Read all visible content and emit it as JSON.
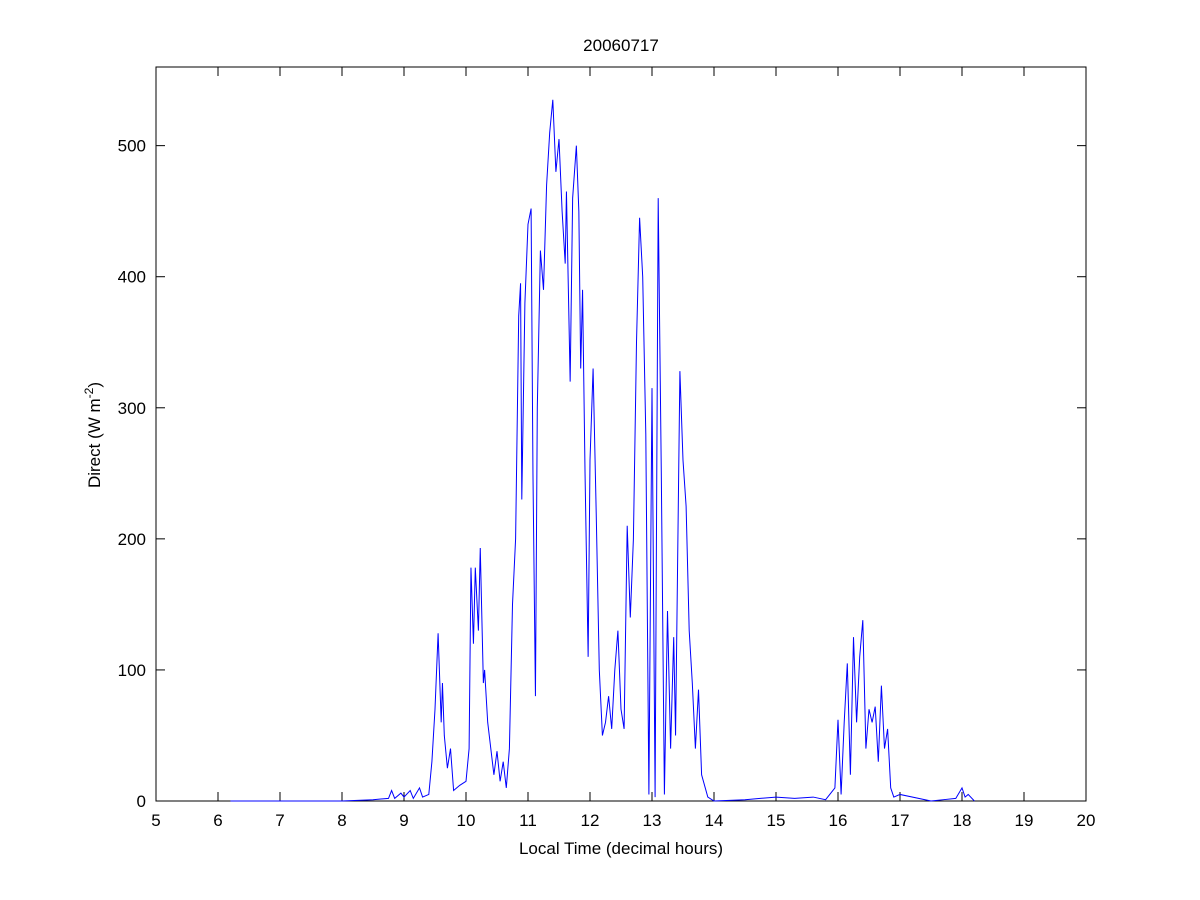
{
  "chart_data": {
    "type": "line",
    "title": "20060717",
    "x_label": "Local Time (decimal hours)",
    "y_label": {
      "text": "Direct (W m",
      "superscript": "-2",
      "suffix": ")"
    },
    "xlim": [
      5,
      20
    ],
    "ylim": [
      0,
      560
    ],
    "xticks": [
      5,
      6,
      7,
      8,
      9,
      10,
      11,
      12,
      13,
      14,
      15,
      16,
      17,
      18,
      19,
      20
    ],
    "yticks": [
      0,
      100,
      200,
      300,
      400,
      500
    ],
    "grid": false,
    "series": [
      {
        "color": "#0000ff",
        "x": [
          6.2,
          7,
          8,
          8.5,
          8.75,
          8.8,
          8.85,
          8.95,
          9.0,
          9.1,
          9.15,
          9.25,
          9.3,
          9.4,
          9.45,
          9.5,
          9.55,
          9.6,
          9.62,
          9.65,
          9.7,
          9.75,
          9.8,
          9.9,
          10.0,
          10.05,
          10.08,
          10.12,
          10.15,
          10.2,
          10.23,
          10.28,
          10.3,
          10.35,
          10.45,
          10.5,
          10.55,
          10.6,
          10.65,
          10.7,
          10.75,
          10.8,
          10.85,
          10.88,
          10.9,
          10.95,
          11.0,
          11.05,
          11.08,
          11.12,
          11.15,
          11.2,
          11.25,
          11.3,
          11.35,
          11.4,
          11.45,
          11.5,
          11.55,
          11.6,
          11.62,
          11.68,
          11.72,
          11.78,
          11.82,
          11.85,
          11.88,
          11.92,
          11.97,
          12.0,
          12.05,
          12.1,
          12.15,
          12.2,
          12.25,
          12.3,
          12.35,
          12.4,
          12.45,
          12.5,
          12.55,
          12.6,
          12.65,
          12.7,
          12.75,
          12.8,
          12.85,
          12.9,
          12.95,
          13.0,
          13.05,
          13.1,
          13.15,
          13.2,
          13.25,
          13.3,
          13.35,
          13.38,
          13.45,
          13.5,
          13.55,
          13.6,
          13.65,
          13.7,
          13.75,
          13.8,
          13.9,
          14.0,
          14.5,
          15.0,
          15.3,
          15.6,
          15.8,
          15.95,
          16.0,
          16.05,
          16.1,
          16.15,
          16.2,
          16.25,
          16.3,
          16.35,
          16.4,
          16.45,
          16.5,
          16.55,
          16.6,
          16.65,
          16.7,
          16.75,
          16.8,
          16.85,
          16.9,
          17.0,
          17.5,
          17.7,
          17.9,
          18.0,
          18.05,
          18.1,
          18.2
        ],
        "values": [
          0,
          0,
          0,
          1,
          2,
          8,
          2,
          6,
          3,
          8,
          2,
          10,
          3,
          5,
          30,
          70,
          128,
          60,
          90,
          50,
          25,
          40,
          8,
          12,
          15,
          40,
          178,
          120,
          178,
          130,
          193,
          90,
          100,
          60,
          20,
          38,
          15,
          30,
          10,
          40,
          150,
          200,
          370,
          395,
          230,
          380,
          440,
          452,
          250,
          80,
          300,
          420,
          390,
          470,
          510,
          535,
          480,
          505,
          450,
          410,
          465,
          320,
          460,
          500,
          450,
          330,
          390,
          250,
          110,
          260,
          330,
          220,
          100,
          50,
          60,
          80,
          55,
          100,
          130,
          70,
          55,
          210,
          140,
          200,
          350,
          445,
          400,
          280,
          5,
          315,
          3,
          460,
          250,
          5,
          145,
          40,
          125,
          50,
          328,
          260,
          225,
          130,
          90,
          40,
          85,
          20,
          3,
          0,
          1,
          3,
          2,
          3,
          1,
          10,
          62,
          5,
          60,
          105,
          20,
          125,
          60,
          110,
          138,
          40,
          70,
          60,
          72,
          30,
          88,
          40,
          55,
          10,
          3,
          5,
          0,
          1,
          2,
          10,
          3,
          5,
          0
        ]
      }
    ]
  }
}
